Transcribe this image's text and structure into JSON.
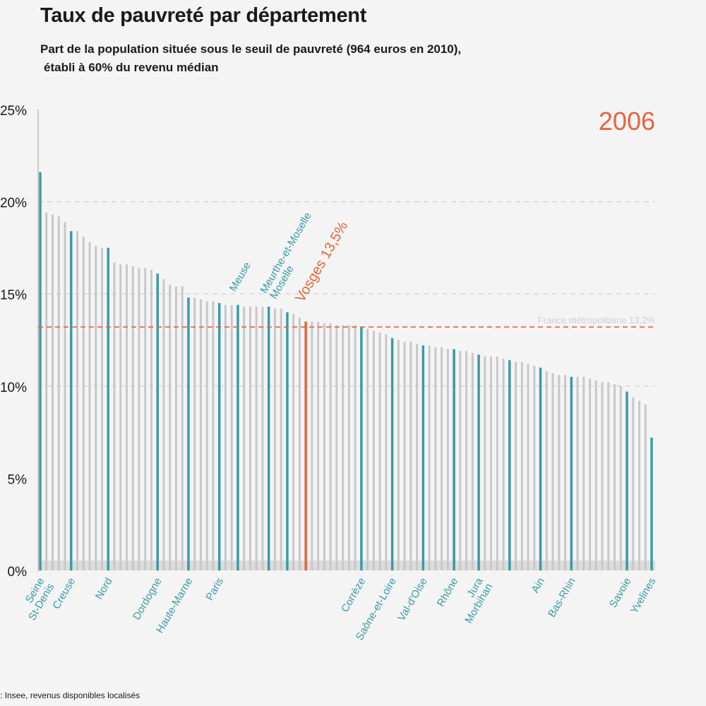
{
  "title": "Taux de pauvreté par département",
  "subtitle_line1": "Part de la population située sous le seuil de pauvreté (964 euros en 2010),",
  "subtitle_line2": "établi à 60% du revenu médian",
  "source": ": Insee, revenus disponibles localisés",
  "colors": {
    "bar_default": "#c8c8c8",
    "bar_highlight": "#3a9ba6",
    "bar_focus": "#e8643a",
    "reference_line": "#e8643a",
    "grid": "#cfcfcf",
    "axis_text": "#1a1a1a",
    "label_text": "#3a9ba6"
  },
  "chart_data": {
    "type": "bar",
    "year_label": "2006",
    "ylim": [
      0,
      25
    ],
    "yticks": [
      "0%",
      "5%",
      "10%",
      "15%",
      "20%",
      "25%"
    ],
    "ytick_values": [
      0,
      5,
      10,
      15,
      20,
      25
    ],
    "grid": "dashed at 10%, 15%, 20%",
    "reference": {
      "label": "France métropolitaine 13,2%",
      "value": 13.2
    },
    "focus": {
      "label": "Vosges 13,5%",
      "value": 13.5,
      "index": 43
    },
    "values": [
      21.6,
      19.4,
      19.3,
      19.2,
      18.9,
      18.4,
      18.4,
      18.1,
      17.8,
      17.6,
      17.5,
      17.5,
      16.7,
      16.6,
      16.6,
      16.5,
      16.4,
      16.4,
      16.3,
      16.1,
      15.8,
      15.5,
      15.4,
      15.4,
      14.8,
      14.8,
      14.7,
      14.6,
      14.6,
      14.5,
      14.4,
      14.4,
      14.4,
      14.3,
      14.3,
      14.3,
      14.3,
      14.3,
      14.2,
      14.2,
      14.0,
      13.9,
      13.7,
      13.5,
      13.5,
      13.5,
      13.4,
      13.4,
      13.3,
      13.3,
      13.3,
      13.3,
      13.2,
      13.1,
      13.0,
      12.9,
      12.8,
      12.6,
      12.5,
      12.4,
      12.4,
      12.3,
      12.2,
      12.2,
      12.1,
      12.1,
      12.0,
      12.0,
      11.9,
      11.9,
      11.8,
      11.7,
      11.6,
      11.6,
      11.6,
      11.5,
      11.4,
      11.3,
      11.3,
      11.2,
      11.1,
      11.0,
      10.8,
      10.7,
      10.6,
      10.6,
      10.5,
      10.5,
      10.5,
      10.4,
      10.3,
      10.2,
      10.2,
      10.1,
      10.0,
      9.7,
      9.4,
      9.2,
      9.0,
      7.2
    ],
    "highlighted_indices": [
      0,
      5,
      11,
      19,
      24,
      29,
      32,
      37,
      40,
      52,
      57,
      62,
      67,
      71,
      76,
      81,
      86,
      95,
      99
    ],
    "x_labels": [
      {
        "index": 0,
        "lines": [
          "Seine",
          "St-Denis"
        ]
      },
      {
        "index": 5,
        "lines": [
          "Creuse"
        ]
      },
      {
        "index": 11,
        "lines": [
          "Nord"
        ]
      },
      {
        "index": 19,
        "lines": [
          "Dordogne"
        ]
      },
      {
        "index": 24,
        "lines": [
          "Haute-Marne"
        ]
      },
      {
        "index": 29,
        "lines": [
          "Paris"
        ]
      },
      {
        "index": 52,
        "lines": [
          "Corrèze"
        ]
      },
      {
        "index": 57,
        "lines": [
          "Saône-et-Loire"
        ]
      },
      {
        "index": 62,
        "lines": [
          "Val-d'Oise"
        ]
      },
      {
        "index": 67,
        "lines": [
          "Rhône"
        ]
      },
      {
        "index": 71,
        "lines": [
          "Jura",
          "Morbihan"
        ]
      },
      {
        "index": 81,
        "lines": [
          "Ain"
        ]
      },
      {
        "index": 86,
        "lines": [
          "Bas-Rhin"
        ]
      },
      {
        "index": 95,
        "lines": [
          "Savoie"
        ]
      },
      {
        "index": 99,
        "lines": [
          "Yvelines"
        ]
      }
    ],
    "top_labels": [
      {
        "index": 32,
        "lines": [
          "Meuse"
        ]
      },
      {
        "index": 37,
        "lines": [
          "Meurthe-et-Moselle",
          "Moselle"
        ]
      }
    ]
  }
}
